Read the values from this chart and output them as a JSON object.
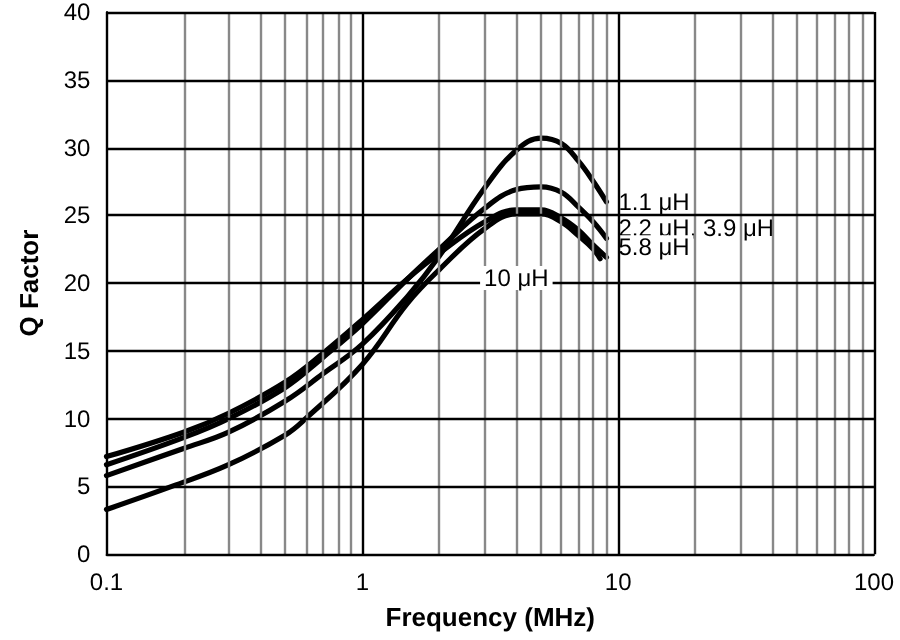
{
  "chart_data": {
    "type": "line",
    "xlabel": "Frequency (MHz)",
    "ylabel": "Q Factor",
    "log": "x",
    "grid": true,
    "marker": "none",
    "line_style": "solid",
    "xlim": [
      0.1,
      100
    ],
    "ylim": [
      0,
      40
    ],
    "yticks": [
      0,
      5,
      10,
      15,
      20,
      25,
      30,
      35,
      40
    ],
    "xticks": [
      0.1,
      {
        "value": 0.2,
        "label": null
      },
      {
        "value": 0.3,
        "label": null
      },
      {
        "value": 0.4,
        "label": null
      },
      {
        "value": 0.5,
        "label": null
      },
      {
        "value": 0.6,
        "label": null
      },
      {
        "value": 0.7,
        "label": null
      },
      {
        "value": 0.8,
        "label": null
      },
      {
        "value": 0.9,
        "label": null
      },
      1,
      {
        "value": 2,
        "label": null
      },
      {
        "value": 3,
        "label": null
      },
      {
        "value": 4,
        "label": null
      },
      {
        "value": 5,
        "label": null
      },
      {
        "value": 6,
        "label": null
      },
      {
        "value": 7,
        "label": null
      },
      {
        "value": 8,
        "label": null
      },
      {
        "value": 9,
        "label": null
      },
      10,
      {
        "value": 20,
        "label": null
      },
      {
        "value": 30,
        "label": null
      },
      {
        "value": 40,
        "label": null
      },
      {
        "value": 50,
        "label": null
      },
      {
        "value": 60,
        "label": null
      },
      {
        "value": 70,
        "label": null
      },
      {
        "value": 80,
        "label": null
      },
      {
        "value": 90,
        "label": null
      },
      100
    ],
    "x": [
      0.1,
      0.2,
      0.3,
      0.5,
      0.7,
      1,
      1.5,
      2,
      3,
      4,
      5,
      6,
      7,
      8,
      9
    ],
    "series": [
      {
        "name": "1.1 μH",
        "color": "#000000",
        "values": [
          5.8,
          7.8,
          9,
          11.3,
          13.3,
          15.5,
          19,
          22,
          27,
          29.8,
          30.7,
          30.3,
          29,
          27.5,
          26
        ]
      },
      {
        "name": "2.2 μH, 3.9 μH",
        "color": "#000000",
        "values": [
          6.6,
          8.6,
          10,
          12.3,
          14.5,
          17,
          20.3,
          22.5,
          25.5,
          26.9,
          27.1,
          26.7,
          25.6,
          24.5,
          23.3
        ]
      },
      {
        "name": "5.8 μH",
        "color": "#000000",
        "values": [
          7.2,
          9,
          10.4,
          12.7,
          14.8,
          17.3,
          20.3,
          22.2,
          24.5,
          25.4,
          25.4,
          24.8,
          23.9,
          22.8,
          21.9
        ]
      },
      {
        "name": "10 μH",
        "color": "#000000",
        "x": [
          0.1,
          0.18,
          0.3,
          0.5,
          0.6,
          1,
          1.5,
          2,
          3,
          4,
          5,
          6,
          7,
          8,
          8.5
        ],
        "values": [
          3.3,
          5,
          6.6,
          8.8,
          10,
          14,
          18.5,
          21,
          24,
          25.1,
          25.1,
          24.5,
          23.5,
          22.5,
          21.8
        ]
      }
    ]
  }
}
